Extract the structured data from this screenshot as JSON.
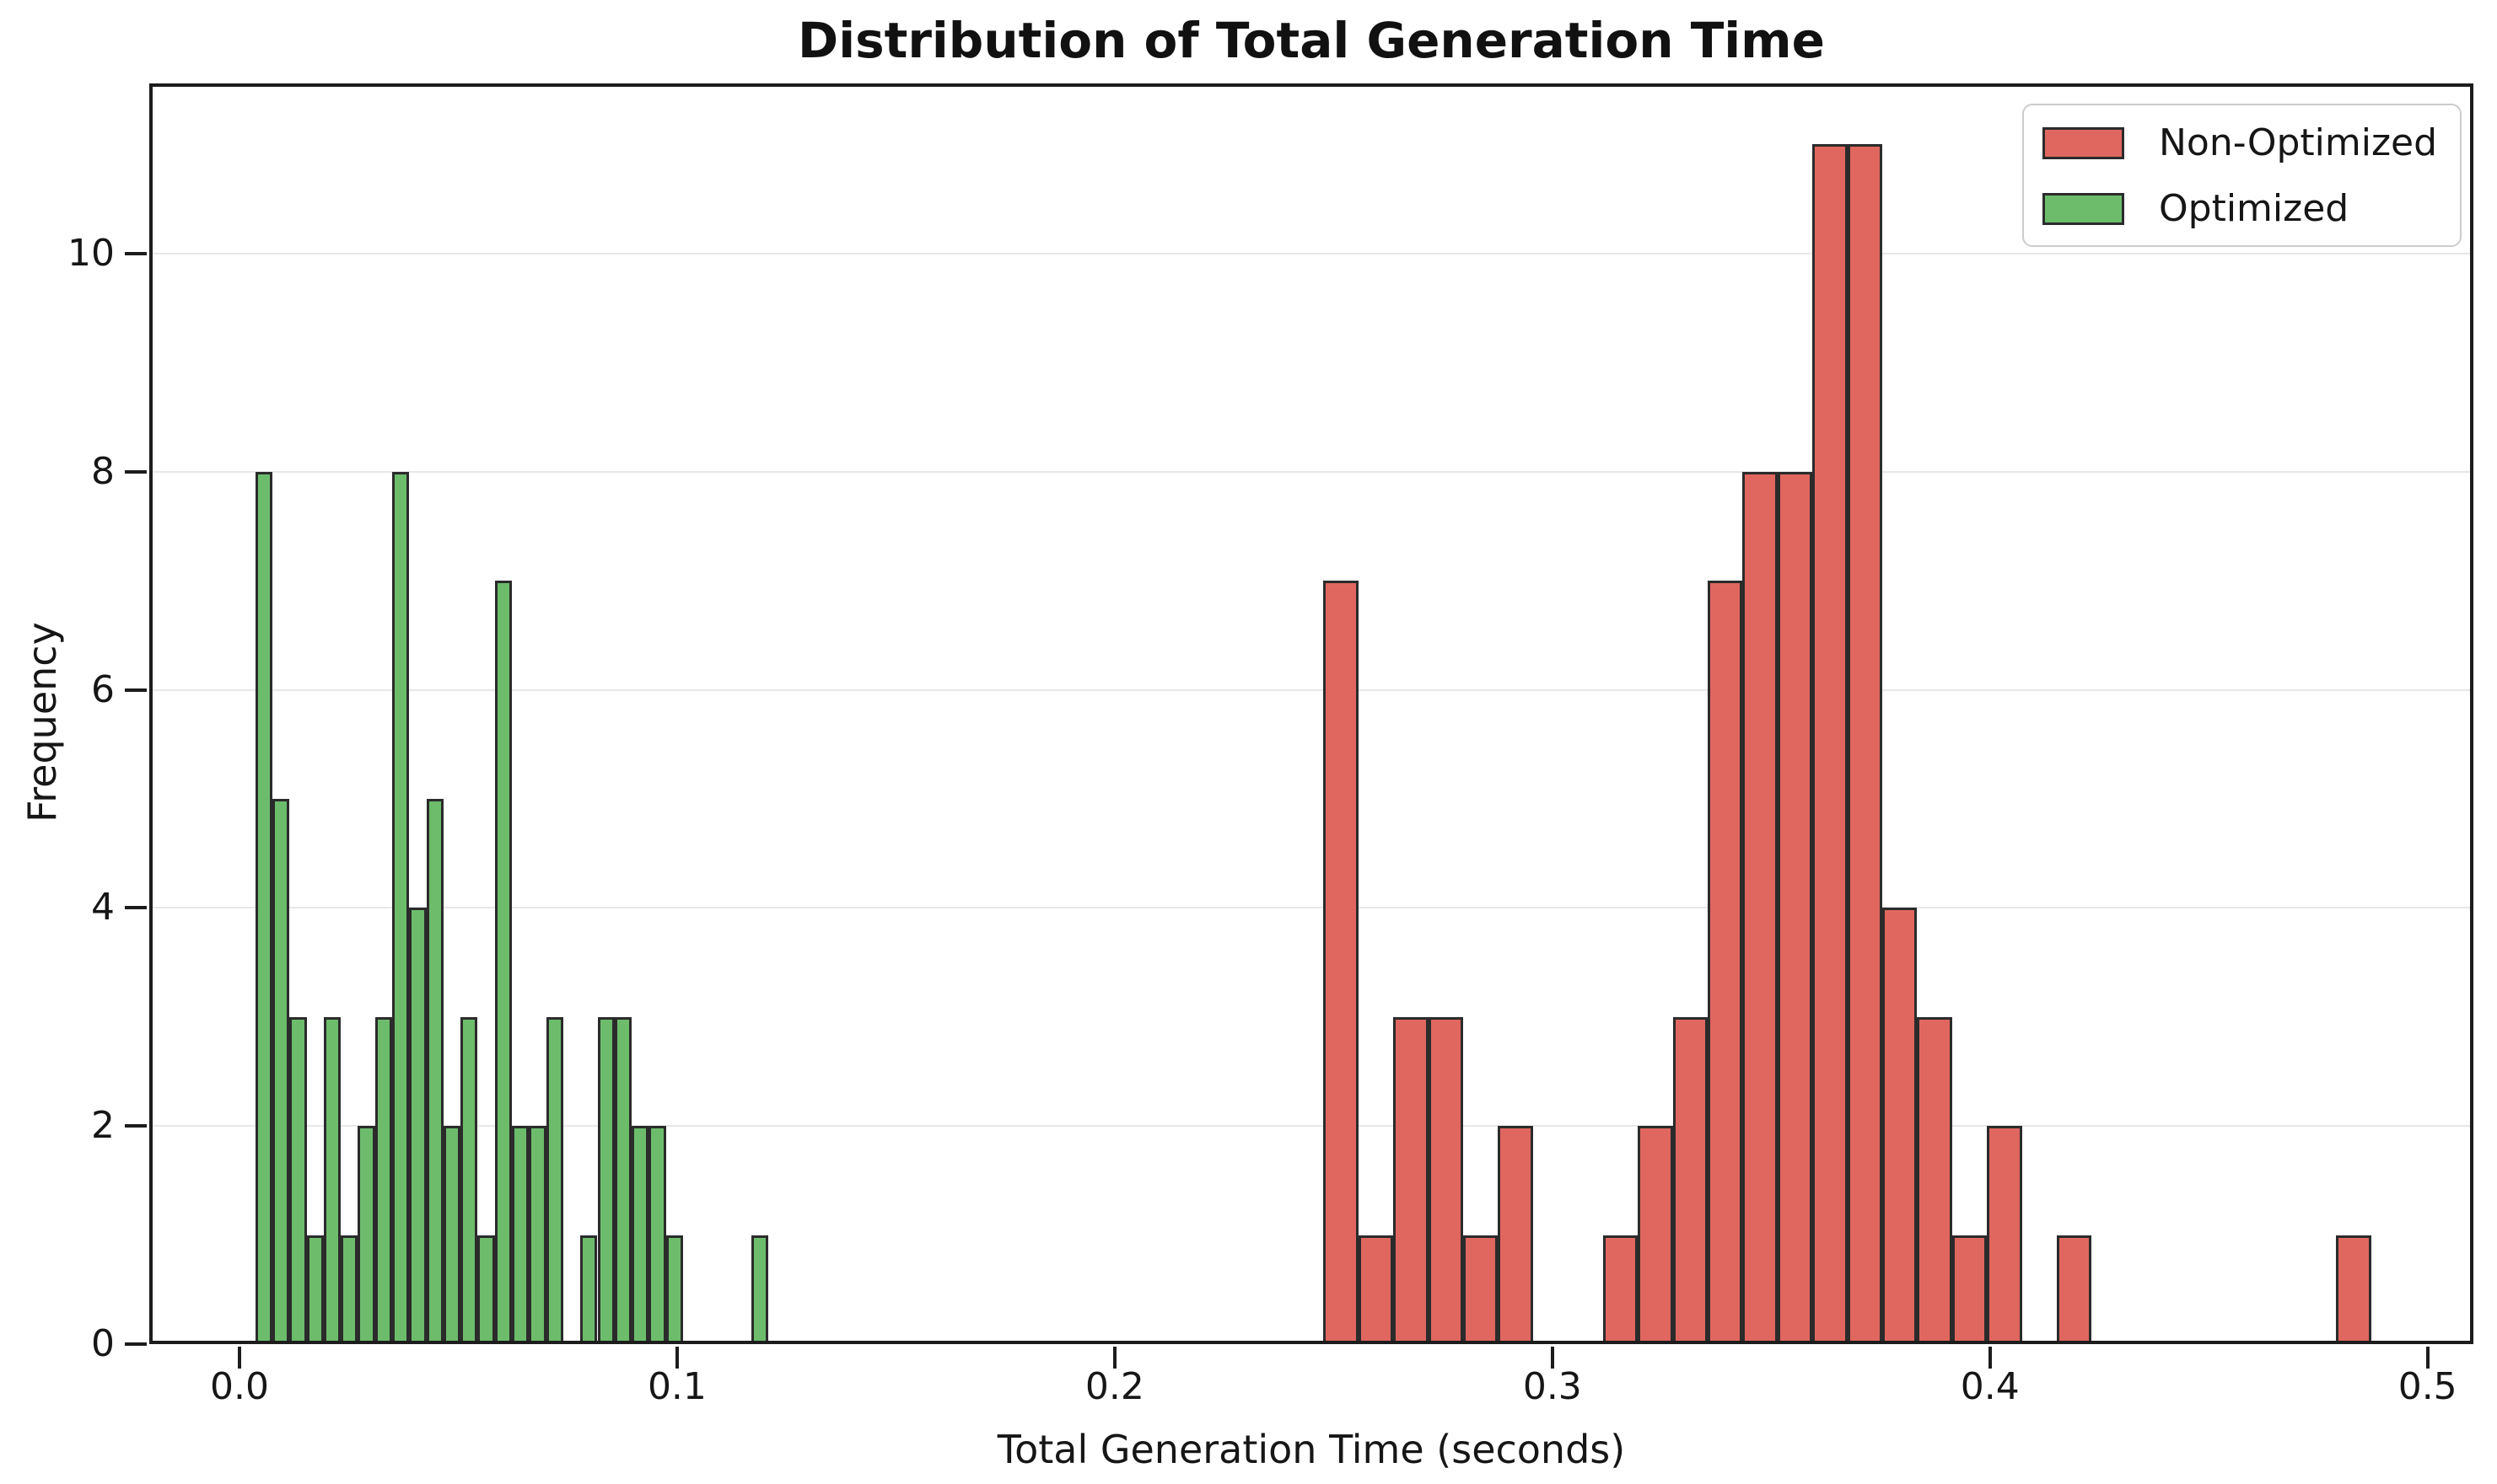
{
  "chart_data": {
    "type": "bar",
    "subtype": "histogram",
    "title": "Distribution of Total Generation Time",
    "xlabel": "Total Generation Time (seconds)",
    "ylabel": "Frequency",
    "xlim": [
      -0.02062,
      0.51046
    ],
    "ylim": [
      0,
      11.56
    ],
    "xticks": [
      {
        "value": 0.0,
        "label": "0.0"
      },
      {
        "value": 0.1,
        "label": "0.1"
      },
      {
        "value": 0.2,
        "label": "0.2"
      },
      {
        "value": 0.3,
        "label": "0.3"
      },
      {
        "value": 0.4,
        "label": "0.4"
      },
      {
        "value": 0.5,
        "label": "0.5"
      }
    ],
    "yticks": [
      {
        "value": 0,
        "label": "0"
      },
      {
        "value": 2,
        "label": "2"
      },
      {
        "value": 4,
        "label": "4"
      },
      {
        "value": 6,
        "label": "6"
      },
      {
        "value": 8,
        "label": "8"
      },
      {
        "value": 10,
        "label": "10"
      }
    ],
    "grid": "horizontal",
    "grid_color": "#e8e8e8",
    "spine_color": "#1c1c1c",
    "legend_position": "upper-right",
    "series": [
      {
        "name": "Non-Optimized",
        "fill": "#e0675f",
        "edge": "#2b2b2b",
        "bins": 30,
        "bin_start": 0.2477,
        "bin_width": 0.00798,
        "counts": [
          7,
          1,
          3,
          3,
          1,
          2,
          0,
          0,
          1,
          2,
          3,
          7,
          8,
          8,
          11,
          11,
          4,
          3,
          1,
          2,
          0,
          1,
          0,
          0,
          0,
          0,
          0,
          0,
          0,
          1
        ]
      },
      {
        "name": "Optimized",
        "fill": "#6cbc6c",
        "edge": "#2b2b2b",
        "bins": 30,
        "bin_start": 0.0036,
        "bin_width": 0.00391,
        "counts": [
          8,
          5,
          3,
          1,
          3,
          1,
          2,
          3,
          8,
          4,
          5,
          2,
          3,
          1,
          7,
          2,
          2,
          3,
          0,
          1,
          3,
          3,
          2,
          2,
          1,
          0,
          0,
          0,
          0,
          1
        ]
      }
    ],
    "legend": [
      {
        "label": "Non-Optimized",
        "color": "#e0675f"
      },
      {
        "label": "Optimized",
        "color": "#6cbc6c"
      }
    ]
  }
}
